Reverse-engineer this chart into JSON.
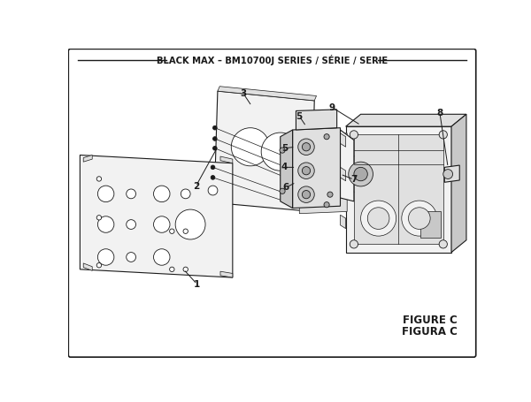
{
  "title": "BLACK MAX – BM10700J SERIES / SÉRIE / SERIE",
  "figure_label": "FIGURE C",
  "figura_label": "FIGURA C",
  "bg_color": "#ffffff",
  "lc": "#1a1a1a",
  "fc_light": "#f2f2f2",
  "fc_mid": "#e0e0e0",
  "fc_dark": "#c8c8c8",
  "fc_darker": "#aaaaaa"
}
